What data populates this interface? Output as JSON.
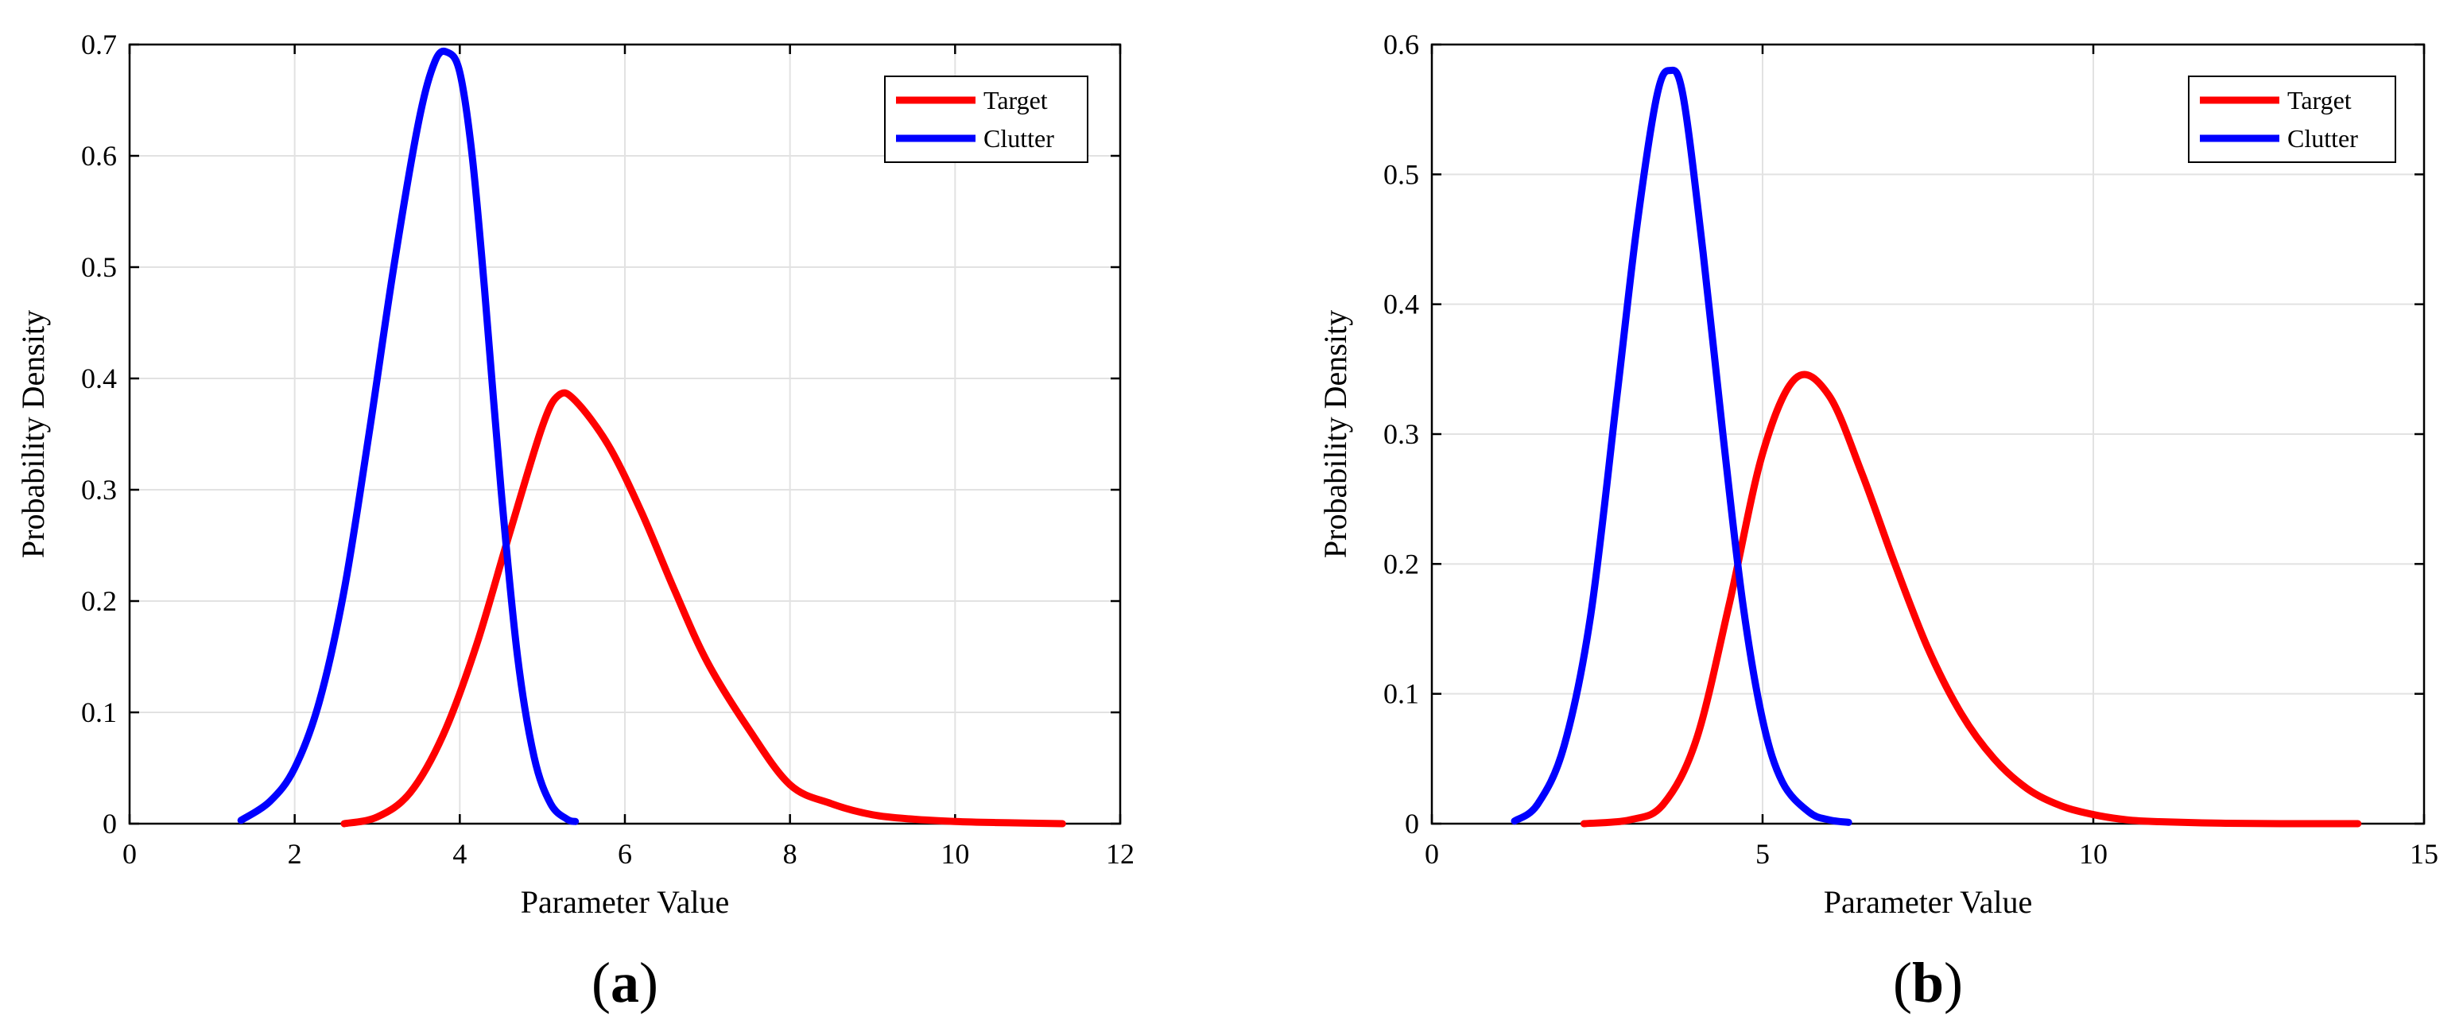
{
  "chart_data": [
    {
      "type": "line",
      "panel_label": "(a)",
      "panel_letter": "a",
      "xlabel": "Parameter Value",
      "ylabel": "Probability Density",
      "xlim": [
        0,
        12
      ],
      "ylim": [
        0,
        0.7
      ],
      "xticks": [
        0,
        2,
        4,
        6,
        8,
        10,
        12
      ],
      "yticks": [
        0,
        0.1,
        0.2,
        0.3,
        0.4,
        0.5,
        0.6,
        0.7
      ],
      "grid": true,
      "legend_position": "top-right",
      "series": [
        {
          "name": "Target",
          "color": "#ff0000",
          "x": [
            2.6,
            3.0,
            3.4,
            3.8,
            4.2,
            4.6,
            5.0,
            5.2,
            5.4,
            5.8,
            6.2,
            6.6,
            7.0,
            7.5,
            8.0,
            8.5,
            9.0,
            9.5,
            10.0,
            10.5,
            11.3
          ],
          "y": [
            0.0,
            0.006,
            0.028,
            0.08,
            0.16,
            0.26,
            0.357,
            0.385,
            0.38,
            0.34,
            0.28,
            0.21,
            0.145,
            0.085,
            0.035,
            0.018,
            0.008,
            0.004,
            0.002,
            0.001,
            0.0
          ]
        },
        {
          "name": "Clutter",
          "color": "#0000ff",
          "x": [
            1.35,
            1.7,
            2.0,
            2.3,
            2.6,
            2.9,
            3.2,
            3.5,
            3.7,
            3.85,
            4.0,
            4.15,
            4.3,
            4.5,
            4.7,
            4.9,
            5.1,
            5.3,
            5.4
          ],
          "y": [
            0.003,
            0.02,
            0.05,
            0.11,
            0.21,
            0.35,
            0.5,
            0.63,
            0.685,
            0.693,
            0.675,
            0.6,
            0.48,
            0.3,
            0.15,
            0.06,
            0.018,
            0.004,
            0.002
          ]
        }
      ]
    },
    {
      "type": "line",
      "panel_label": "(b)",
      "panel_letter": "b",
      "xlabel": "Parameter Value",
      "ylabel": "Probability Density",
      "xlim": [
        0,
        15
      ],
      "ylim": [
        0,
        0.6
      ],
      "xticks": [
        0,
        5,
        10,
        15
      ],
      "yticks": [
        0,
        0.1,
        0.2,
        0.3,
        0.4,
        0.5,
        0.6
      ],
      "grid": true,
      "legend_position": "top-right",
      "series": [
        {
          "name": "Target",
          "color": "#ff0000",
          "x": [
            2.3,
            3.0,
            3.5,
            4.0,
            4.5,
            5.0,
            5.5,
            6.0,
            6.5,
            7.0,
            7.5,
            8.0,
            8.5,
            9.0,
            9.5,
            10.0,
            10.5,
            11.0,
            12.0,
            13.0,
            14.0
          ],
          "y": [
            0.0,
            0.003,
            0.015,
            0.065,
            0.17,
            0.285,
            0.343,
            0.33,
            0.27,
            0.2,
            0.135,
            0.085,
            0.05,
            0.027,
            0.014,
            0.007,
            0.003,
            0.0015,
            0.0003,
            0.0,
            0.0
          ]
        },
        {
          "name": "Clutter",
          "color": "#0000ff",
          "x": [
            1.25,
            1.6,
            2.0,
            2.4,
            2.8,
            3.1,
            3.4,
            3.6,
            3.8,
            4.1,
            4.4,
            4.7,
            5.0,
            5.3,
            5.7,
            6.0,
            6.3
          ],
          "y": [
            0.002,
            0.015,
            0.06,
            0.16,
            0.33,
            0.46,
            0.56,
            0.58,
            0.56,
            0.44,
            0.3,
            0.17,
            0.08,
            0.032,
            0.009,
            0.003,
            0.001
          ]
        }
      ]
    }
  ]
}
